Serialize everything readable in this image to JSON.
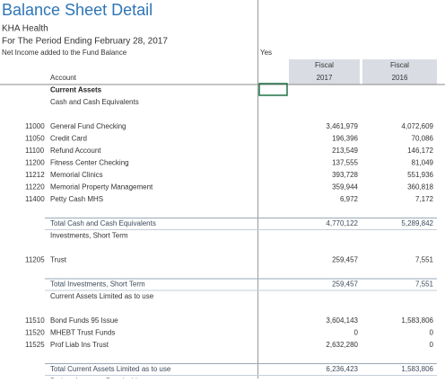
{
  "header": {
    "title": "Balance Sheet Detail",
    "company": "KHA Health",
    "period": "For The Period Ending February 28, 2017",
    "note": "Net Income added to the Fund Balance",
    "note_value": "Yes"
  },
  "table": {
    "account_label": "Account",
    "columns": [
      {
        "label": "Fiscal",
        "year": "2017"
      },
      {
        "label": "Fiscal",
        "year": "2016"
      }
    ],
    "section": "Current Assets",
    "groups": [
      {
        "name": "Cash and Cash Equivalents",
        "items": [
          {
            "code": "11000",
            "name": "General Fund Checking",
            "values": [
              "3,461,979",
              "4,072,609"
            ]
          },
          {
            "code": "11050",
            "name": "Credit Card",
            "values": [
              "196,396",
              "70,086"
            ]
          },
          {
            "code": "11100",
            "name": "Refund Account",
            "values": [
              "213,549",
              "146,172"
            ]
          },
          {
            "code": "11200",
            "name": "Fitness Center Checking",
            "values": [
              "137,555",
              "81,049"
            ]
          },
          {
            "code": "11212",
            "name": "Memorial Clinics",
            "values": [
              "393,728",
              "551,936"
            ]
          },
          {
            "code": "11220",
            "name": "Memorial Property Management",
            "values": [
              "359,944",
              "360,818"
            ]
          },
          {
            "code": "11400",
            "name": "Petty Cash MHS",
            "values": [
              "6,972",
              "7,172"
            ]
          }
        ],
        "total": {
          "name": "Total Cash and Cash Equivalents",
          "values": [
            "4,770,122",
            "5,289,842"
          ]
        }
      },
      {
        "name": "Investments, Short Term",
        "items": [
          {
            "code": "11205",
            "name": "Trust",
            "values": [
              "259,457",
              "7,551"
            ]
          }
        ],
        "total": {
          "name": "Total Investments, Short Term",
          "values": [
            "259,457",
            "7,551"
          ]
        }
      },
      {
        "name": "Current Assets Limited as to use",
        "items": [
          {
            "code": "11510",
            "name": "Bond Funds 95 Issue",
            "values": [
              "3,604,143",
              "1,583,806"
            ]
          },
          {
            "code": "11520",
            "name": "MHEBT Trust Funds",
            "values": [
              "0",
              "0"
            ]
          },
          {
            "code": "11525",
            "name": "Prof Liab Ins Trust",
            "values": [
              "2,632,280",
              "0"
            ]
          }
        ],
        "total": {
          "name": "Total Current Assets Limited as to use",
          "values": [
            "6,236,423",
            "1,583,806"
          ]
        }
      },
      {
        "name": "Patient Accounts Receivable"
      }
    ]
  }
}
